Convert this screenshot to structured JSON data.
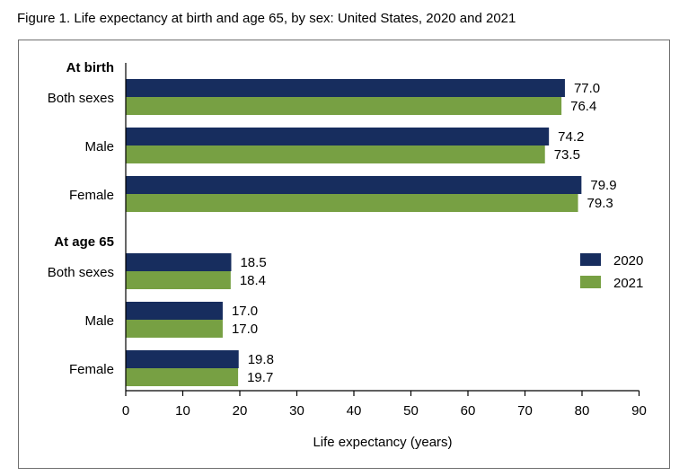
{
  "title": "Figure 1. Life expectancy at birth and age 65, by sex: United States, 2020 and 2021",
  "chart_data": {
    "type": "bar",
    "orientation": "horizontal",
    "xlabel": "Life expectancy (years)",
    "xlim": [
      0,
      90
    ],
    "xticks": [
      0,
      10,
      20,
      30,
      40,
      50,
      60,
      70,
      80,
      90
    ],
    "grid": false,
    "legend_position": "right",
    "groups": [
      {
        "label": "At birth",
        "categories": [
          "Both sexes",
          "Male",
          "Female"
        ]
      },
      {
        "label": "At age 65",
        "categories": [
          "Both sexes",
          "Male",
          "Female"
        ]
      }
    ],
    "series": [
      {
        "name": "2020",
        "color": "#172d5e",
        "values": [
          [
            77.0,
            74.2,
            79.9
          ],
          [
            18.5,
            17.0,
            19.8
          ]
        ],
        "labels": [
          [
            "77.0",
            "74.2",
            "79.9"
          ],
          [
            "18.5",
            "17.0",
            "19.8"
          ]
        ]
      },
      {
        "name": "2021",
        "color": "#77a043",
        "values": [
          [
            76.4,
            73.5,
            79.3
          ],
          [
            18.4,
            17.0,
            19.7
          ]
        ],
        "labels": [
          [
            "76.4",
            "73.5",
            "79.3"
          ],
          [
            "18.4",
            "17.0",
            "19.7"
          ]
        ]
      }
    ]
  }
}
